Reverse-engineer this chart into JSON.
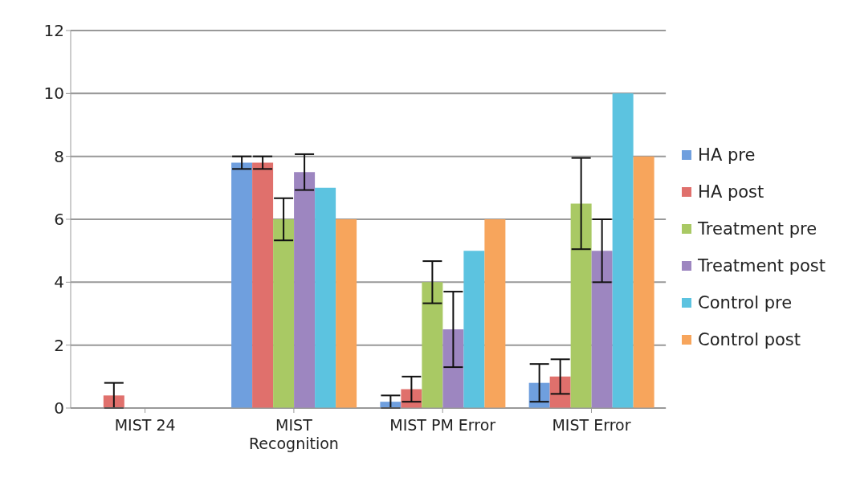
{
  "chart_data": {
    "type": "bar",
    "categories": [
      "MIST 24",
      "MIST Recognition",
      "MIST PM Error",
      "MIST Error"
    ],
    "series": [
      {
        "name": "HA pre",
        "color": "#6f9fde",
        "values": [
          0,
          7.8,
          0.2,
          0.8
        ],
        "errors": [
          null,
          0.2,
          0.2,
          0.6
        ]
      },
      {
        "name": "HA post",
        "color": "#e0706c",
        "values": [
          0.4,
          7.8,
          0.6,
          1.0
        ],
        "errors": [
          0.4,
          0.2,
          0.4,
          0.55
        ]
      },
      {
        "name": "Treatment pre",
        "color": "#a9c964",
        "values": [
          0,
          6.0,
          4.0,
          6.5
        ],
        "errors": [
          null,
          0.67,
          0.67,
          1.45
        ]
      },
      {
        "name": "Treatment post",
        "color": "#9d86c0",
        "values": [
          0,
          7.5,
          2.5,
          5.0
        ],
        "errors": [
          null,
          0.57,
          1.2,
          1.0
        ]
      },
      {
        "name": "Control pre",
        "color": "#5cc3e0",
        "values": [
          0,
          7.0,
          5.0,
          10.0
        ]
      },
      {
        "name": "Control post",
        "color": "#f7a55c",
        "values": [
          0,
          6.0,
          6.0,
          8.0
        ]
      }
    ],
    "ylim": [
      0,
      12
    ],
    "yticks": [
      0,
      2,
      4,
      6,
      8,
      10,
      12
    ],
    "grid": "y",
    "legend": "right"
  }
}
